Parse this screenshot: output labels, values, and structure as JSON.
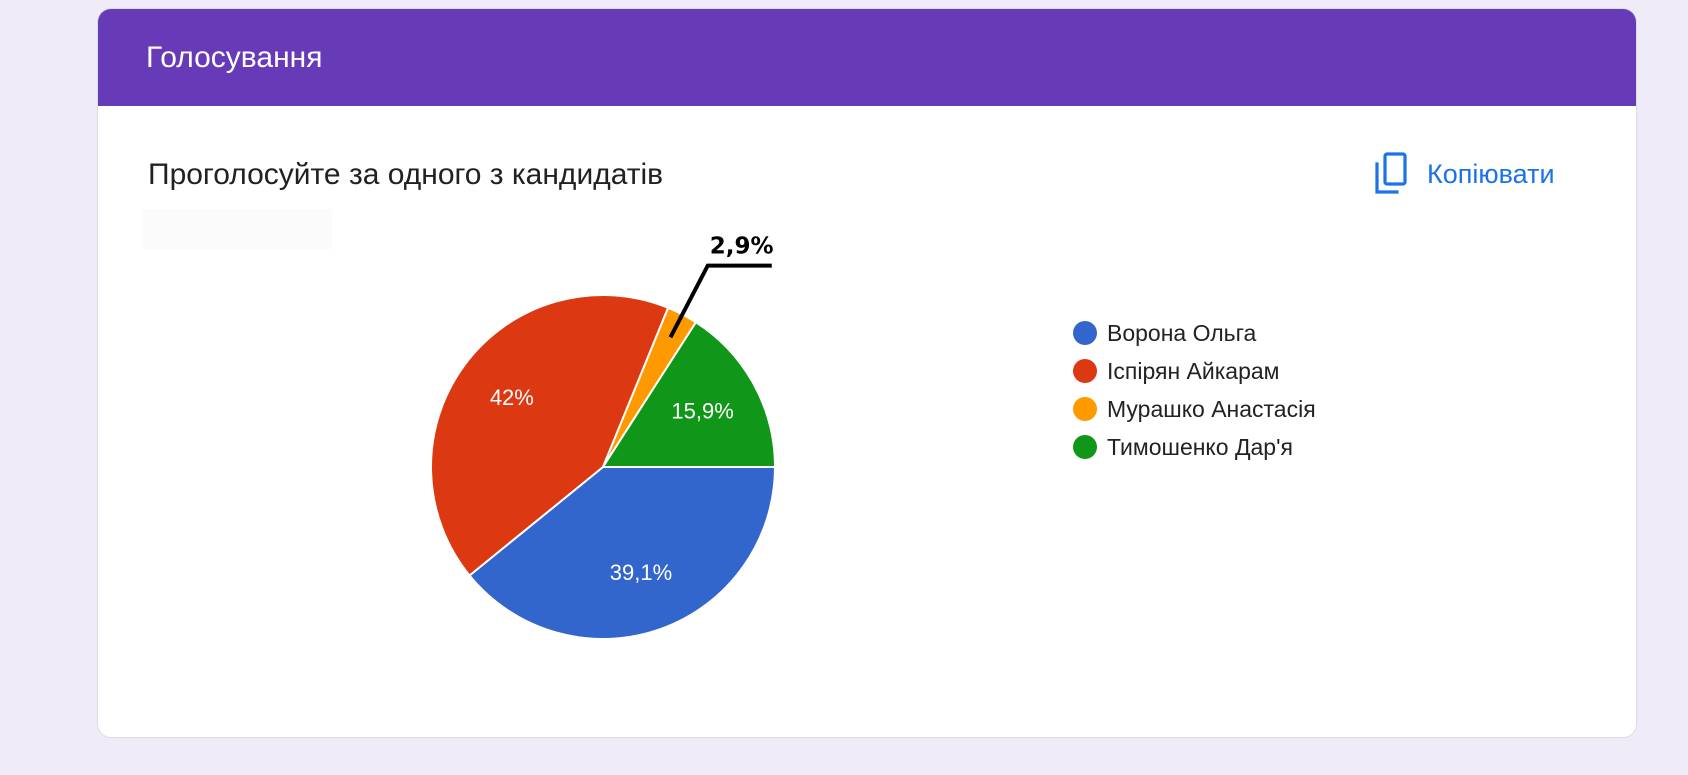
{
  "form": {
    "title": "Голосування"
  },
  "question": {
    "text": "Проголосуйте за одного з кандидатів",
    "copy_label": "Копіювати"
  },
  "icons": {
    "copy": "copy-icon"
  },
  "chart_data": {
    "type": "pie",
    "categories": [
      "Ворона Ольга",
      "Іспірян Айкарам",
      "Мурашко Анастасія",
      "Тимошенко Дар'я"
    ],
    "values": [
      39.1,
      42,
      2.9,
      15.9
    ],
    "labels": [
      "39,1%",
      "42%",
      "2,9%",
      "15,9%"
    ],
    "colors": [
      "#3366cc",
      "#dc3912",
      "#ff9900",
      "#109618"
    ],
    "legend_position": "right"
  }
}
